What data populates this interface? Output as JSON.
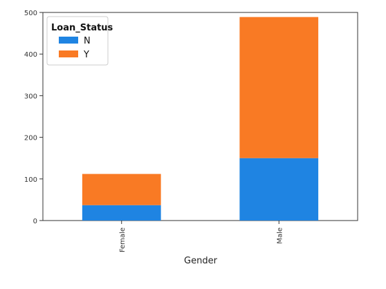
{
  "chart_data": {
    "type": "bar",
    "stacked": true,
    "categories": [
      "Female",
      "Male"
    ],
    "series": [
      {
        "name": "N",
        "values": [
          37,
          150
        ],
        "color": "#1f84e2"
      },
      {
        "name": "Y",
        "values": [
          75,
          339
        ],
        "color": "#f97a24"
      }
    ],
    "xlabel": "Gender",
    "ylabel": "",
    "ylim": [
      0,
      500
    ],
    "yticks": [
      0,
      100,
      200,
      300,
      400,
      500
    ],
    "legend_title": "Loan_Status",
    "legend_position": "top-left",
    "grid": false
  }
}
